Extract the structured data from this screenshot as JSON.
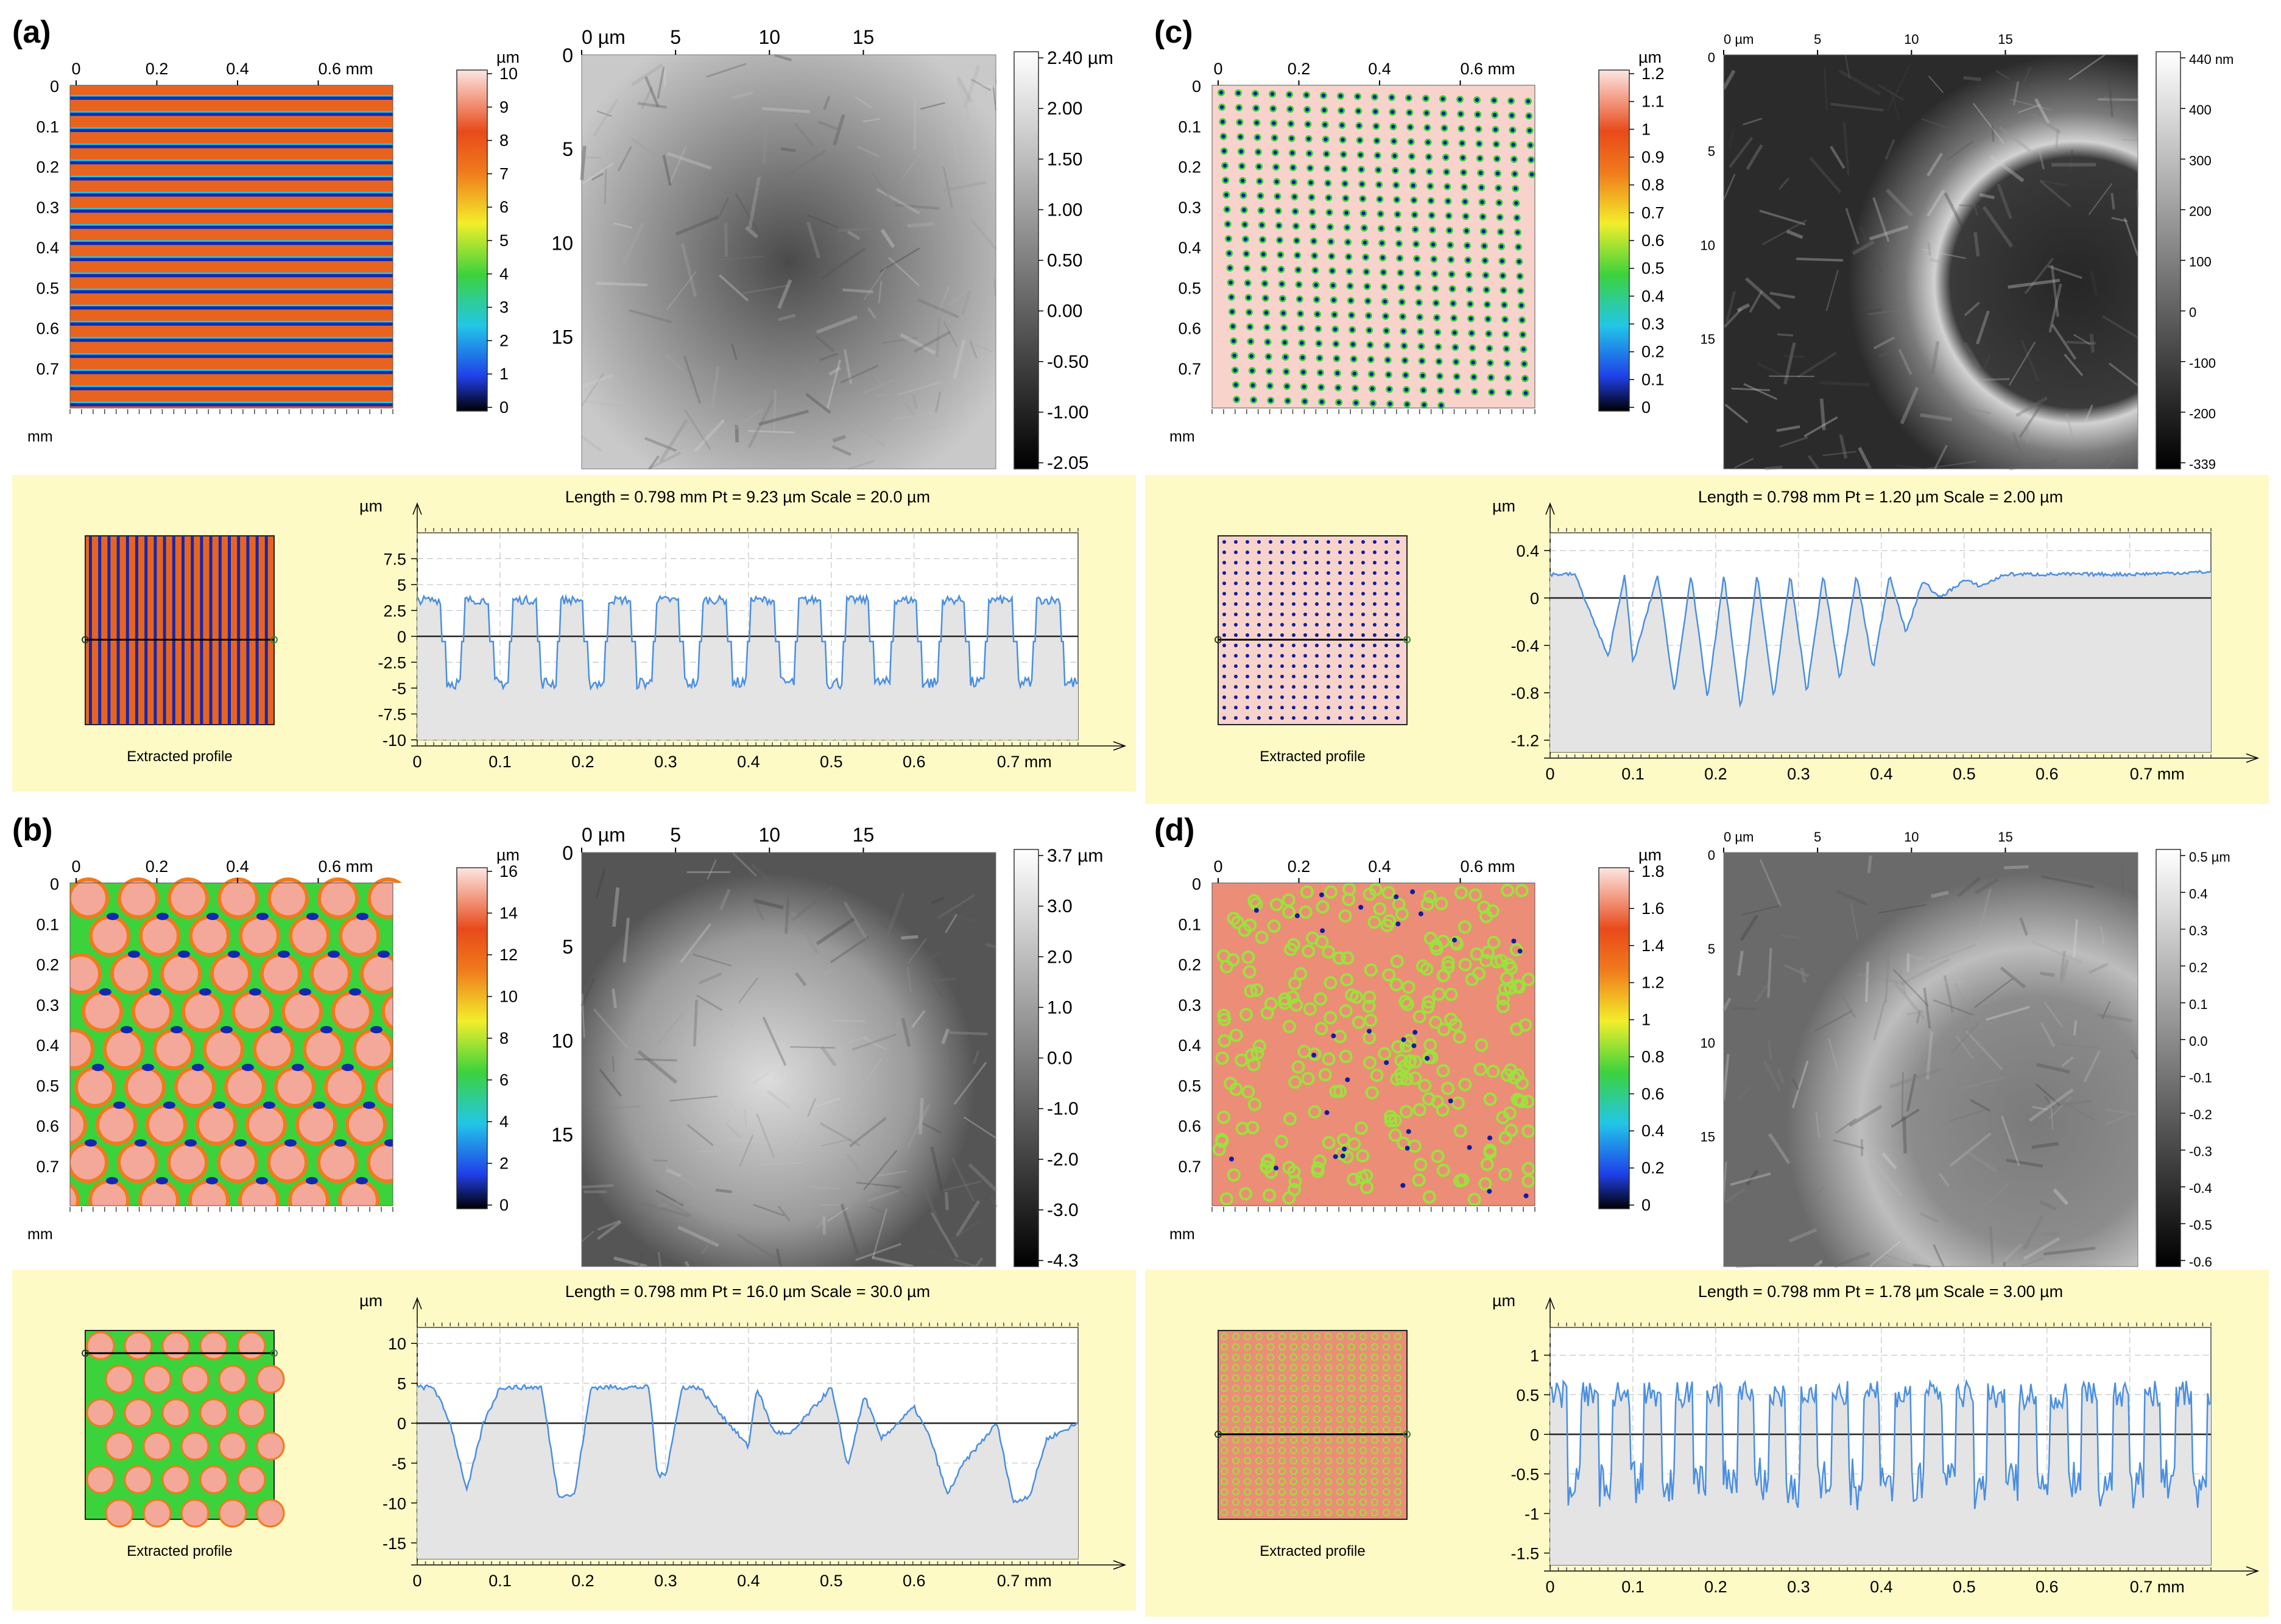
{
  "panels": [
    {
      "label": "(a)",
      "map": {
        "type": "stripes",
        "top_ticks": [
          "0",
          "0.2",
          "0.4",
          "0.6 mm"
        ],
        "left_ticks": [
          "0",
          "0.1",
          "0.2",
          "0.3",
          "0.4",
          "0.5",
          "0.6",
          "0.7"
        ],
        "corner_unit": "mm",
        "colorbar_unit": "µm",
        "colorbar_ticks": [
          "10",
          "9",
          "8",
          "7",
          "6",
          "5",
          "4",
          "3",
          "2",
          "1",
          "0"
        ]
      },
      "afm": {
        "top_ticks": [
          "0 µm",
          "5",
          "10",
          "15"
        ],
        "left_ticks": [
          "0",
          "5",
          "10",
          "15"
        ],
        "colorbar_ticks": [
          "2.40 µm",
          "2.00",
          "1.50",
          "1.00",
          "0.50",
          "0.00",
          "-0.50",
          "-1.00",
          "-2.05"
        ]
      },
      "profile": {
        "header": "Length = 0.798 mm  Pt = 9.23 µm  Scale = 20.0 µm",
        "y_unit": "µm",
        "thumb_caption": "Extracted profile",
        "x_ticks": [
          "0",
          "0.1",
          "0.2",
          "0.3",
          "0.4",
          "0.5",
          "0.6",
          "0.7 mm"
        ],
        "y_ticks": [
          "7.5",
          "5",
          "2.5",
          "0",
          "-2.5",
          "-5",
          "-7.5",
          "-10"
        ]
      }
    },
    {
      "label": "(b)",
      "map": {
        "type": "hex",
        "top_ticks": [
          "0",
          "0.2",
          "0.4",
          "0.6 mm"
        ],
        "left_ticks": [
          "0",
          "0.1",
          "0.2",
          "0.3",
          "0.4",
          "0.5",
          "0.6",
          "0.7"
        ],
        "corner_unit": "mm",
        "colorbar_unit": "µm",
        "colorbar_ticks": [
          "16",
          "14",
          "12",
          "10",
          "8",
          "6",
          "4",
          "2",
          "0"
        ]
      },
      "afm": {
        "top_ticks": [
          "0 µm",
          "5",
          "10",
          "15"
        ],
        "left_ticks": [
          "0",
          "5",
          "10",
          "15"
        ],
        "colorbar_ticks": [
          "3.7 µm",
          "3.0",
          "2.0",
          "1.0",
          "0.0",
          "-1.0",
          "-2.0",
          "-3.0",
          "-4.3"
        ]
      },
      "profile": {
        "header": "Length = 0.798 mm  Pt = 16.0 µm  Scale = 30.0 µm",
        "y_unit": "µm",
        "thumb_caption": "Extracted profile",
        "x_ticks": [
          "0",
          "0.1",
          "0.2",
          "0.3",
          "0.4",
          "0.5",
          "0.6",
          "0.7 mm"
        ],
        "y_ticks": [
          "10",
          "5",
          "0",
          "-5",
          "-10",
          "-15"
        ]
      }
    },
    {
      "label": "(c)",
      "map": {
        "type": "dots",
        "top_ticks": [
          "0",
          "0.2",
          "0.4",
          "0.6 mm"
        ],
        "left_ticks": [
          "0",
          "0.1",
          "0.2",
          "0.3",
          "0.4",
          "0.5",
          "0.6",
          "0.7"
        ],
        "corner_unit": "mm",
        "colorbar_unit": "µm",
        "colorbar_ticks": [
          "1.2",
          "1.1",
          "1",
          "0.9",
          "0.8",
          "0.7",
          "0.6",
          "0.5",
          "0.4",
          "0.3",
          "0.2",
          "0.1",
          "0"
        ]
      },
      "afm": {
        "top_ticks": [
          "0 µm",
          "5",
          "10",
          "15"
        ],
        "left_ticks": [
          "0",
          "5",
          "10",
          "15"
        ],
        "colorbar_ticks": [
          "440 nm",
          "400",
          "300",
          "200",
          "100",
          "0",
          "-100",
          "-200",
          "-339"
        ]
      },
      "profile": {
        "header": "Length = 0.798 mm  Pt = 1.20 µm  Scale = 2.00 µm",
        "y_unit": "µm",
        "thumb_caption": "Extracted profile",
        "x_ticks": [
          "0",
          "0.1",
          "0.2",
          "0.3",
          "0.4",
          "0.5",
          "0.6",
          "0.7 mm"
        ],
        "y_ticks": [
          "0.4",
          "0",
          "-0.4",
          "-0.8",
          "-1.2"
        ]
      }
    },
    {
      "label": "(d)",
      "map": {
        "type": "rings",
        "top_ticks": [
          "0",
          "0.2",
          "0.4",
          "0.6 mm"
        ],
        "left_ticks": [
          "0",
          "0.1",
          "0.2",
          "0.3",
          "0.4",
          "0.5",
          "0.6",
          "0.7"
        ],
        "corner_unit": "mm",
        "colorbar_unit": "µm",
        "colorbar_ticks": [
          "1.8",
          "1.6",
          "1.4",
          "1.2",
          "1",
          "0.8",
          "0.6",
          "0.4",
          "0.2",
          "0"
        ]
      },
      "afm": {
        "top_ticks": [
          "0 µm",
          "5",
          "10",
          "15"
        ],
        "left_ticks": [
          "0",
          "5",
          "10",
          "15"
        ],
        "colorbar_ticks": [
          "0.5 µm",
          "0.4",
          "0.3",
          "0.2",
          "0.1",
          "0.0",
          "-0.1",
          "-0.2",
          "-0.3",
          "-0.4",
          "-0.5",
          "-0.6"
        ]
      },
      "profile": {
        "header": "Length = 0.798 mm  Pt = 1.78 µm  Scale = 3.00 µm",
        "y_unit": "µm",
        "thumb_caption": "Extracted profile",
        "x_ticks": [
          "0",
          "0.1",
          "0.2",
          "0.3",
          "0.4",
          "0.5",
          "0.6",
          "0.7 mm"
        ],
        "y_ticks": [
          "1",
          "0.5",
          "0",
          "-0.5",
          "-1",
          "-1.5"
        ]
      }
    }
  ],
  "colors": {
    "profile_bg": "#FDFAC6",
    "profile_line": "#4A8FE0",
    "profile_fill": "#E4E4E4",
    "heat_low": "#000000",
    "heat_mid_blue": "#1F3FE8",
    "heat_cyan": "#22C6E8",
    "heat_green": "#3CD23C",
    "heat_yellow": "#F2EE2A",
    "heat_orange": "#F07A1C",
    "heat_red": "#E84A1A",
    "heat_high": "#FCE6E2"
  },
  "chart_data": [
    {
      "type": "line",
      "title": "Length = 0.798 mm  Pt = 9.23 µm  Scale = 20.0 µm",
      "ylabel": "µm",
      "xlim": [
        0,
        0.798
      ],
      "ylim": [
        -10,
        10
      ],
      "description_shape": "square_wave",
      "period_mm": 0.0575,
      "high": 3.5,
      "low": -4.5
    },
    {
      "type": "line",
      "title": "Length = 0.798 mm  Pt = 16.0 µm  Scale = 30.0 µm",
      "ylabel": "µm",
      "xlim": [
        0,
        0.798
      ],
      "ylim": [
        -17,
        12
      ],
      "x": [
        0,
        0.02,
        0.04,
        0.06,
        0.08,
        0.1,
        0.15,
        0.17,
        0.19,
        0.21,
        0.28,
        0.29,
        0.3,
        0.32,
        0.34,
        0.4,
        0.41,
        0.43,
        0.45,
        0.5,
        0.52,
        0.54,
        0.56,
        0.6,
        0.62,
        0.64,
        0.66,
        0.7,
        0.72,
        0.74,
        0.76,
        0.798
      ],
      "y": [
        4.5,
        4.5,
        0,
        -8.5,
        0,
        4.5,
        4.5,
        -9,
        -9,
        4.5,
        4.5,
        -6.5,
        -6.5,
        4.5,
        4.5,
        -3,
        4.5,
        -1,
        -1.5,
        4.5,
        -5.5,
        3.5,
        -2,
        2,
        -2,
        -9,
        -5,
        0,
        -10,
        -9,
        -2,
        0
      ]
    },
    {
      "type": "line",
      "title": "Length = 0.798 mm  Pt = 1.20 µm  Scale = 2.00 µm",
      "ylabel": "µm",
      "xlim": [
        0,
        0.798
      ],
      "ylim": [
        -1.3,
        0.55
      ],
      "x": [
        0,
        0.03,
        0.07,
        0.09,
        0.1,
        0.13,
        0.15,
        0.17,
        0.19,
        0.21,
        0.23,
        0.25,
        0.27,
        0.29,
        0.31,
        0.33,
        0.35,
        0.37,
        0.39,
        0.41,
        0.43,
        0.45,
        0.47,
        0.5,
        0.52,
        0.55,
        0.6,
        0.7,
        0.798
      ],
      "y": [
        0.2,
        0.2,
        -0.5,
        0.2,
        -0.55,
        0.2,
        -0.8,
        0.2,
        -0.85,
        0.2,
        -0.95,
        0.2,
        -0.85,
        0.2,
        -0.8,
        0.2,
        -0.7,
        0.2,
        -0.6,
        0.2,
        -0.3,
        0.15,
        0.0,
        0.15,
        0.1,
        0.2,
        0.2,
        0.2,
        0.22
      ]
    },
    {
      "type": "line",
      "title": "Length = 0.798 mm  Pt = 1.78 µm  Scale = 3.00 µm",
      "ylabel": "µm",
      "xlim": [
        0,
        0.798
      ],
      "ylim": [
        -1.65,
        1.35
      ],
      "description_shape": "noisy_dips",
      "baseline": 0.5,
      "dip": -0.9
    }
  ]
}
